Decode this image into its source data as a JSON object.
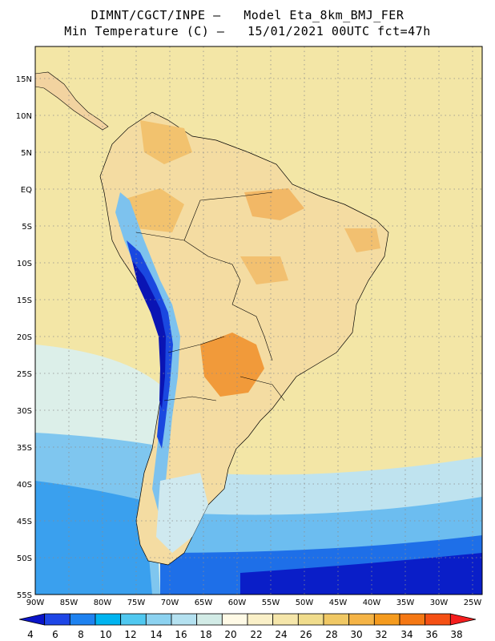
{
  "header": {
    "line1": "DIMNT/CGCT/INPE –   Model Eta_8km_BMJ_FER",
    "line2": "Min Temperature (C) –   15/01/2021 00UTC fct=47h"
  },
  "map": {
    "lat_labels": [
      "15N",
      "10N",
      "5N",
      "EQ",
      "5S",
      "10S",
      "15S",
      "20S",
      "25S",
      "30S",
      "35S",
      "40S",
      "45S",
      "50S",
      "55S"
    ],
    "lon_labels": [
      "90W",
      "85W",
      "80W",
      "75W",
      "70W",
      "65W",
      "60W",
      "55W",
      "50W",
      "45W",
      "40W",
      "35W",
      "30W",
      "25W"
    ],
    "ocean_color": "#f2e5a8",
    "land_color": "#f2d9a0"
  },
  "colorbar": {
    "labels": [
      "4",
      "6",
      "8",
      "10",
      "12",
      "14",
      "16",
      "18",
      "20",
      "22",
      "24",
      "26",
      "28",
      "30",
      "32",
      "34",
      "36",
      "38"
    ],
    "colors": [
      "#0a14c8",
      "#1e46e6",
      "#1e82f0",
      "#00b4f0",
      "#50c8f0",
      "#8cd2f0",
      "#b4e1f0",
      "#d2ebe6",
      "#fffae6",
      "#faf0c8",
      "#f5e6aa",
      "#f0dc8c",
      "#f0c864",
      "#f5b446",
      "#f59b1e",
      "#f57814",
      "#f55014",
      "#f51e1e"
    ]
  }
}
